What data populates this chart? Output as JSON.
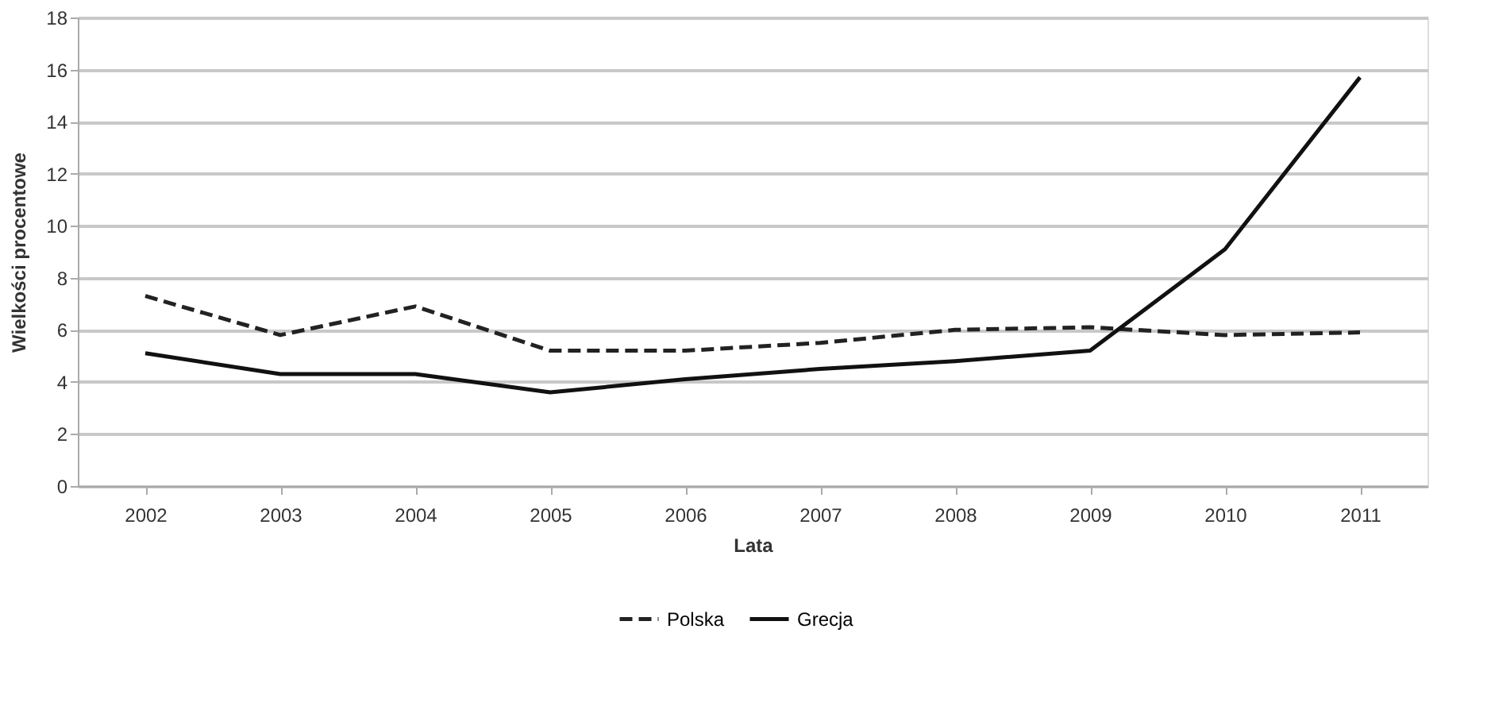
{
  "chart_data": {
    "type": "line",
    "xlabel": "Lata",
    "ylabel": "Wielkości procentowe",
    "categories": [
      "2002",
      "2003",
      "2004",
      "2005",
      "2006",
      "2007",
      "2008",
      "2009",
      "2010",
      "2011"
    ],
    "series": [
      {
        "name": "Polska",
        "color": "#222222",
        "line_style": "dashed",
        "values": [
          7.3,
          5.8,
          6.9,
          5.2,
          5.2,
          5.5,
          6.0,
          6.1,
          5.8,
          5.9
        ]
      },
      {
        "name": "Grecja",
        "color": "#111111",
        "line_style": "solid",
        "values": [
          5.1,
          4.3,
          4.3,
          3.6,
          4.1,
          4.5,
          4.8,
          5.2,
          9.1,
          15.7
        ]
      }
    ],
    "ylim": [
      0,
      18
    ],
    "yticks": [
      0,
      2,
      4,
      6,
      8,
      10,
      12,
      14,
      16,
      18
    ],
    "grid": "y",
    "legend": "bottom",
    "marker": "none"
  }
}
